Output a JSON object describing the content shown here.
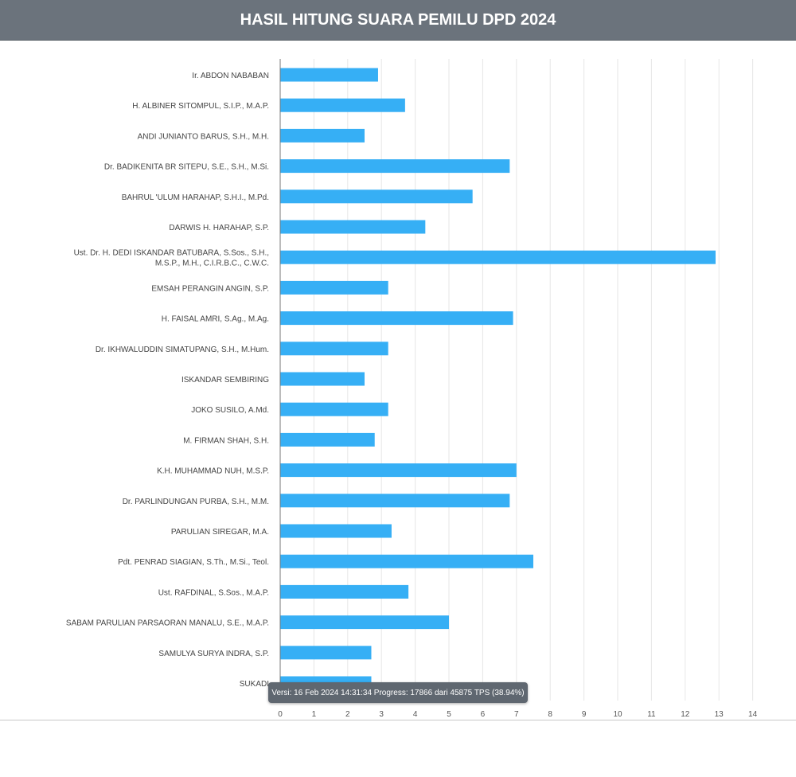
{
  "header": {
    "title": "HASIL HITUNG SUARA PEMILU DPD 2024"
  },
  "tooltip": {
    "text": "Versi: 16 Feb 2024 14:31:34 Progress: 17866 dari 45875 TPS (38.94%)"
  },
  "colors": {
    "bar": "#36aff5",
    "header_bg": "#6b737c",
    "grid": "#e6e6e6"
  },
  "chart_data": {
    "type": "bar",
    "orientation": "horizontal",
    "title": "HASIL HITUNG SUARA PEMILU DPD 2024",
    "xlim": [
      0,
      14
    ],
    "ticks": [
      "0",
      "1",
      "2",
      "3",
      "4",
      "5",
      "6",
      "7",
      "8",
      "9",
      "10",
      "11",
      "12",
      "13",
      "14"
    ],
    "grid": true,
    "categories": [
      [
        "Ir. ABDON NABABAN"
      ],
      [
        "H. ALBINER SITOMPUL, S.I.P., M.A.P."
      ],
      [
        "ANDI JUNIANTO BARUS, S.H., M.H."
      ],
      [
        "Dr. BADIKENITA BR SITEPU, S.E., S.H., M.Si."
      ],
      [
        "BAHRUL 'ULUM HARAHAP, S.H.I., M.Pd."
      ],
      [
        "DARWIS H. HARAHAP, S.P."
      ],
      [
        "Ust. Dr. H. DEDI ISKANDAR BATUBARA, S.Sos., S.H.,",
        "M.S.P., M.H., C.I.R.B.C., C.W.C."
      ],
      [
        "EMSAH PERANGIN ANGIN, S.P."
      ],
      [
        "H. FAISAL AMRI, S.Ag., M.Ag."
      ],
      [
        "Dr. IKHWALUDDIN SIMATUPANG, S.H., M.Hum."
      ],
      [
        "ISKANDAR SEMBIRING"
      ],
      [
        "JOKO SUSILO, A.Md."
      ],
      [
        "M. FIRMAN SHAH, S.H."
      ],
      [
        "K.H. MUHAMMAD NUH, M.S.P."
      ],
      [
        "Dr. PARLINDUNGAN PURBA, S.H., M.M."
      ],
      [
        "PARULIAN SIREGAR, M.A."
      ],
      [
        "Pdt. PENRAD SIAGIAN, S.Th., M.Si., Teol."
      ],
      [
        "Ust. RAFDINAL, S.Sos., M.A.P."
      ],
      [
        "SABAM PARULIAN PARSAORAN MANALU, S.E., M.A.P."
      ],
      [
        "SAMULYA SURYA INDRA, S.P."
      ],
      [
        "SUKADI"
      ]
    ],
    "values": [
      2.9,
      3.7,
      2.5,
      6.8,
      5.7,
      4.3,
      12.9,
      3.2,
      6.9,
      3.2,
      2.5,
      3.2,
      2.8,
      7.0,
      6.8,
      3.3,
      7.5,
      3.8,
      5.0,
      2.7,
      2.7
    ]
  }
}
